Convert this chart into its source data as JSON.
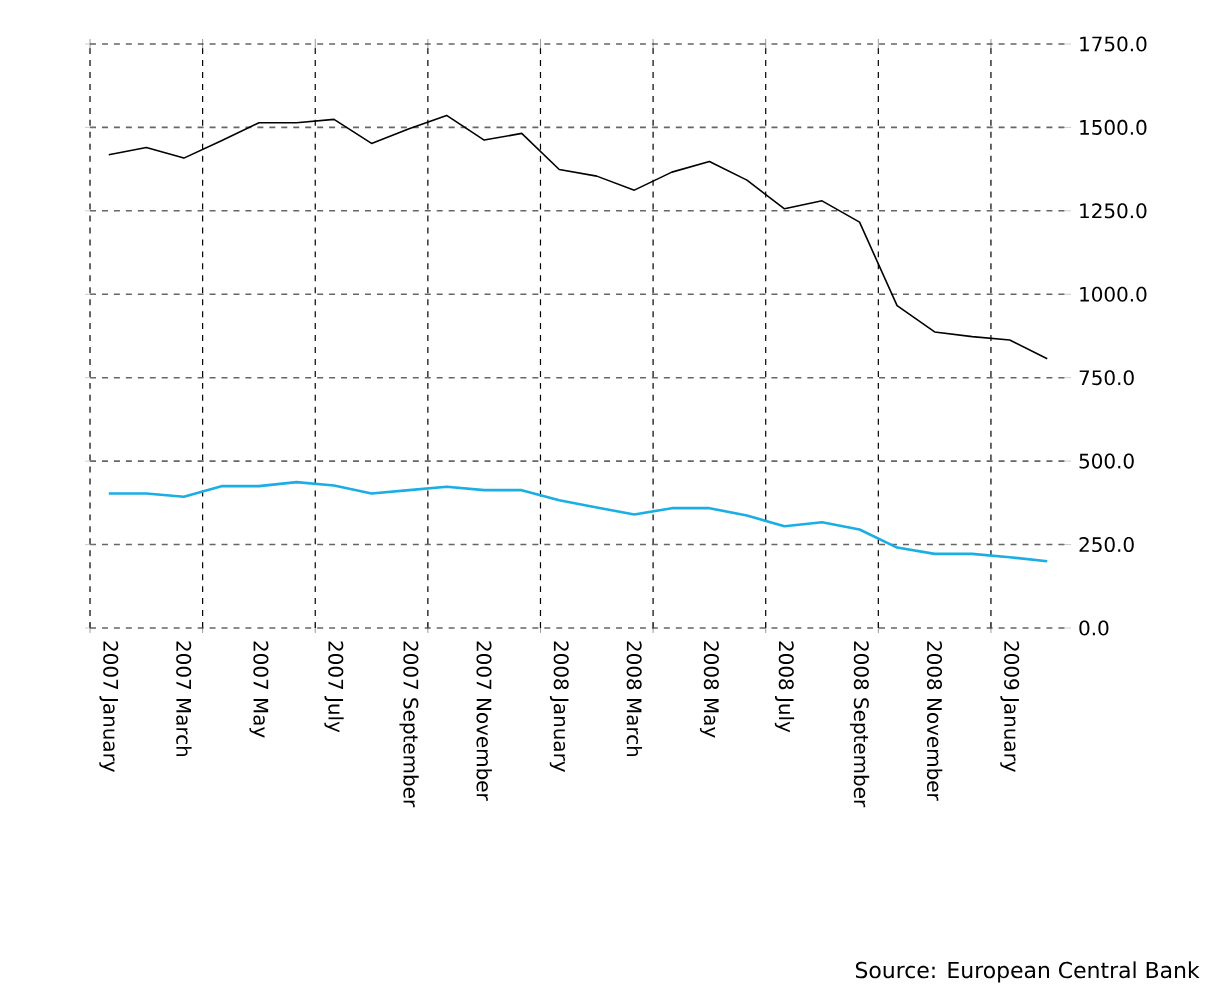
{
  "chart_data": {
    "type": "line",
    "categories": [
      "2007 January",
      null,
      "2007 March",
      null,
      "2007 May",
      null,
      "2007 July",
      null,
      "2007 September",
      null,
      "2007 November",
      null,
      "2008 January",
      null,
      "2008 March",
      null,
      "2008 May",
      null,
      "2008 July",
      null,
      "2008 September",
      null,
      "2008 November",
      null,
      "2009 January",
      null
    ],
    "series": [
      {
        "color": "#1aaee5",
        "values": [
          403,
          403,
          393,
          425,
          425,
          437,
          427,
          403,
          413,
          423,
          413,
          413,
          383,
          361,
          340,
          359,
          359,
          337,
          305,
          317,
          295,
          241,
          222,
          222,
          212,
          200
        ]
      },
      {
        "color": "#000000",
        "values": [
          1418,
          1440,
          1408,
          1460,
          1514,
          1514,
          1524,
          1452,
          1496,
          1536,
          1462,
          1482,
          1374,
          1354,
          1312,
          1366,
          1398,
          1342,
          1256,
          1280,
          1216,
          966,
          887,
          873,
          863,
          807
        ]
      }
    ],
    "ylim": [
      0,
      1750
    ],
    "yticks": [
      {
        "value": 0,
        "label": "0.0"
      },
      {
        "value": 250,
        "label": "250.0"
      },
      {
        "value": 500,
        "label": "500.0"
      },
      {
        "value": 750,
        "label": "750.0"
      },
      {
        "value": 1000,
        "label": "1000.0"
      },
      {
        "value": 1250,
        "label": "1250.0"
      },
      {
        "value": 1500,
        "label": "1500.0"
      },
      {
        "value": 1750,
        "label": "1750.0"
      }
    ],
    "grid": true,
    "annotations": [
      "Source: European Central Bank"
    ]
  }
}
